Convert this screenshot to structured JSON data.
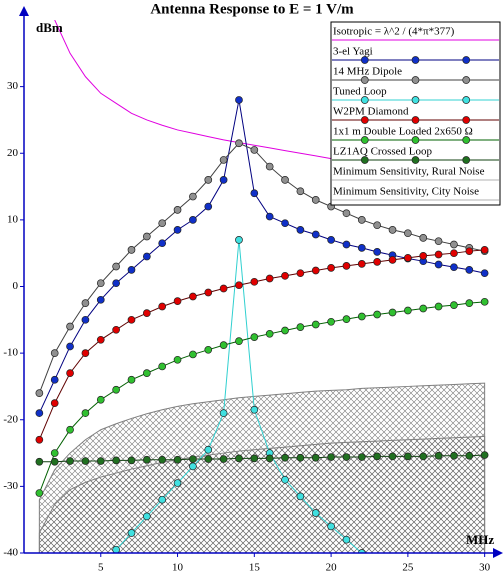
{
  "chart_data": {
    "type": "line",
    "title": "Antenna Response to E = 1 V/m",
    "y_label": "dBm",
    "x_label": "MHz",
    "xlim": [
      0,
      31
    ],
    "ylim": [
      -40,
      40
    ],
    "xticks": [
      5,
      10,
      15,
      20,
      25,
      30
    ],
    "yticks": [
      -40,
      -30,
      -20,
      -10,
      0,
      10,
      20,
      30
    ],
    "legend": "top-right",
    "x": [
      1,
      2,
      3,
      4,
      5,
      6,
      7,
      8,
      9,
      10,
      11,
      12,
      13,
      14,
      15,
      16,
      17,
      18,
      19,
      20,
      21,
      22,
      23,
      24,
      25,
      26,
      27,
      28,
      29,
      30
    ],
    "series": [
      {
        "name": "Isotropic = λ^2 / (4*π*377)",
        "color": "#e000e0",
        "marker": false,
        "values": [
          null,
          40,
          35,
          31.5,
          29,
          27.5,
          26,
          25,
          24.2,
          23.5,
          23,
          22.5,
          22,
          21.6,
          21.2,
          20.8,
          20.4,
          20,
          19.6,
          19.2,
          19,
          18.7,
          18.5,
          18.2,
          18,
          17.7,
          17.5,
          17.2,
          17,
          16.8
        ]
      },
      {
        "name": "3-el Yagi",
        "color": "#000080",
        "marker_color": "#1030c8",
        "marker": true,
        "values": [
          -19,
          -14,
          -9,
          -5,
          -2,
          0.5,
          2.5,
          4.5,
          6.5,
          8.5,
          10,
          12,
          16,
          28,
          14,
          10.5,
          9.5,
          8.5,
          7.8,
          7,
          6.3,
          5.8,
          5.2,
          4.7,
          4.2,
          3.8,
          3.3,
          2.9,
          2.5,
          2
        ]
      },
      {
        "name": "14 MHz Dipole",
        "color": "#404040",
        "marker_color": "#909090",
        "marker": true,
        "values": [
          -16,
          -10,
          -6,
          -2.5,
          0.5,
          3,
          5.5,
          7.5,
          9.5,
          11.5,
          13.5,
          16,
          19,
          21.5,
          20.5,
          18,
          16,
          14.3,
          13,
          12,
          11,
          10,
          9.2,
          8.5,
          8,
          7.3,
          6.8,
          6.3,
          5.8,
          5.3
        ]
      },
      {
        "name": "Tuned Loop",
        "color": "#30d0d0",
        "marker_color": "#40e0e0",
        "marker": true,
        "values": [
          null,
          null,
          null,
          null,
          null,
          -39.5,
          -37,
          -34.5,
          -32,
          -29.5,
          -27,
          -24.5,
          -19,
          7,
          -18.5,
          -25,
          -29,
          -31.5,
          -34,
          -36,
          -38,
          -40,
          null,
          null,
          null,
          null,
          null,
          null,
          null,
          null
        ]
      },
      {
        "name": "W2PM Diamond",
        "color": "#600000",
        "marker_color": "#e00000",
        "marker": true,
        "values": [
          -23,
          -17.5,
          -13,
          -10,
          -8,
          -6.5,
          -5,
          -4,
          -3,
          -2.2,
          -1.5,
          -0.9,
          -0.3,
          0.2,
          0.7,
          1.2,
          1.6,
          2,
          2.4,
          2.8,
          3.1,
          3.4,
          3.7,
          4,
          4.3,
          4.6,
          4.8,
          5,
          5.3,
          5.5
        ]
      },
      {
        "name": "1x1 m Double Loaded 2x650 Ω",
        "color": "#006000",
        "marker_color": "#30c030",
        "marker": true,
        "values": [
          -31,
          -25,
          -21.5,
          -19,
          -17,
          -15.5,
          -14,
          -13,
          -12,
          -11,
          -10.2,
          -9.5,
          -8.8,
          -8.2,
          -7.6,
          -7.1,
          -6.6,
          -6.1,
          -5.7,
          -5.3,
          -4.9,
          -4.5,
          -4.2,
          -3.9,
          -3.6,
          -3.3,
          -3,
          -2.8,
          -2.5,
          -2.3
        ]
      },
      {
        "name": "LZ1AQ Crossed Loop",
        "color": "#104010",
        "marker_color": "#207020",
        "marker": true,
        "values": [
          -26.3,
          -26.3,
          -26.2,
          -26.2,
          -26.2,
          -26.1,
          -26.1,
          -26,
          -26,
          -26,
          -25.9,
          -25.9,
          -25.9,
          -25.8,
          -25.8,
          -25.8,
          -25.7,
          -25.7,
          -25.7,
          -25.6,
          -25.6,
          -25.6,
          -25.5,
          -25.5,
          -25.5,
          -25.5,
          -25.4,
          -25.4,
          -25.4,
          -25.3
        ]
      },
      {
        "name": "Minimum Sensitivity, Rural Noise",
        "color": "#808080",
        "style": "area",
        "values": [
          -32,
          -27.5,
          -25,
          -23,
          -21.5,
          -20.6,
          -19.8,
          -19.1,
          -18.5,
          -18,
          -17.6,
          -17.3,
          -17,
          -16.7,
          -16.5,
          -16.3,
          -16.1,
          -15.9,
          -15.7,
          -15.6,
          -15.5,
          -15.3,
          -15.2,
          -15.1,
          -15,
          -14.9,
          -14.8,
          -14.7,
          -14.6,
          -14.5
        ]
      },
      {
        "name": "Minimum Sensitivity, City Noise",
        "color": "#808080",
        "style": "area",
        "values": [
          -37,
          -32.7,
          -30.5,
          -29.4,
          -28.6,
          -28,
          -27.4,
          -26.9,
          -26.4,
          -26,
          -25.6,
          -25.3,
          -25,
          -24.7,
          -24.5,
          -24.3,
          -24.1,
          -23.9,
          -23.7,
          -23.5,
          -23.4,
          -23.3,
          -23.2,
          -23.1,
          -23,
          -22.9,
          -22.8,
          -22.7,
          -22.6,
          -22.5
        ]
      }
    ]
  }
}
